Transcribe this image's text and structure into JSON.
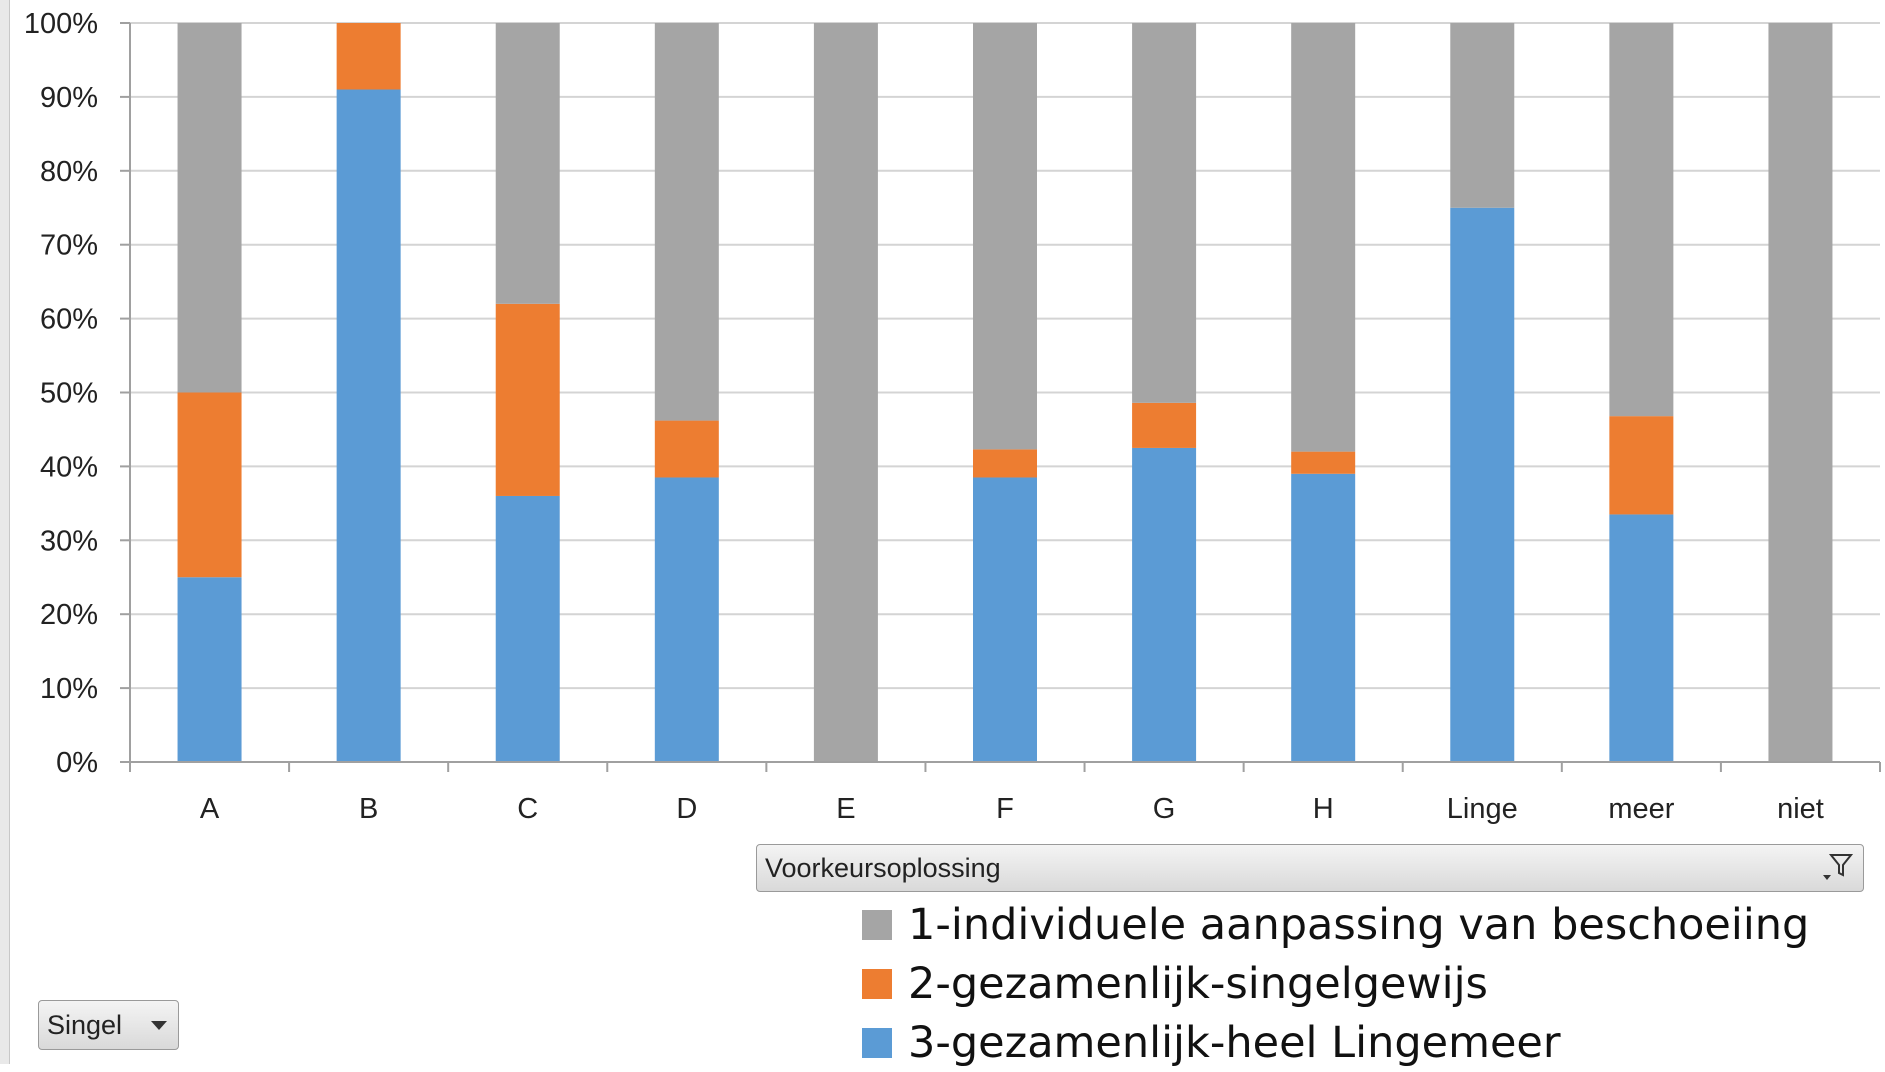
{
  "chart_data": {
    "type": "bar",
    "stacked": true,
    "percent_stacked": true,
    "categories": [
      "A",
      "B",
      "C",
      "D",
      "E",
      "F",
      "G",
      "H",
      "Linge",
      "meer",
      "niet"
    ],
    "series": [
      {
        "name": "3-gezamenlijk-heel Lingemeer",
        "color": "#5b9bd5",
        "values": [
          25,
          91,
          36,
          38.5,
          0,
          38.5,
          42.5,
          39,
          75,
          33.5,
          0
        ]
      },
      {
        "name": "2-gezamenlijk-singelgewijs",
        "color": "#ed7d31",
        "values": [
          25,
          9,
          26,
          7.7,
          0,
          3.8,
          6.1,
          3,
          0,
          13.3,
          0
        ]
      },
      {
        "name": "1-individuele aanpassing van beschoeiing",
        "color": "#a5a5a5",
        "values": [
          50,
          0,
          38,
          53.8,
          100,
          57.7,
          51.4,
          58,
          25,
          53.2,
          100
        ]
      }
    ],
    "ylim": [
      0,
      100
    ],
    "yticks": [
      "0%",
      "10%",
      "20%",
      "30%",
      "40%",
      "50%",
      "60%",
      "70%",
      "80%",
      "90%",
      "100%"
    ],
    "grid": true,
    "legend_position": "bottom-right",
    "title": "",
    "xlabel": "",
    "ylabel": ""
  },
  "filters": {
    "series_field_label": "Voorkeursoplossing",
    "category_field_label": "Singel"
  },
  "icons": {
    "series_filter_icon": "filter-icon",
    "category_filter_icon": "dropdown-arrow-icon"
  }
}
